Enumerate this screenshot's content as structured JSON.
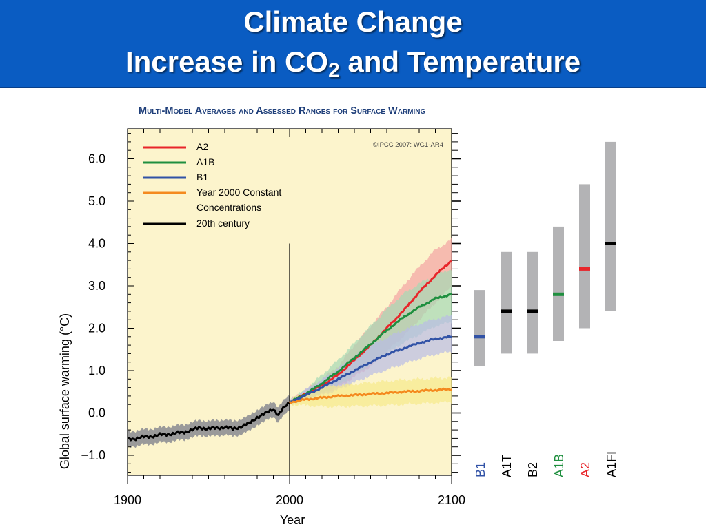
{
  "slide": {
    "title_line1": "Climate Change",
    "title_line2_pre": "Increase in CO",
    "title_line2_sub": "2",
    "title_line2_post": " and Temperature"
  },
  "chart_data": {
    "type": "line",
    "title": "Multi-Model Averages and Assessed Ranges for Surface Warming",
    "copyright": "©IPCC  2007: WG1-AR4",
    "xlabel": "Year",
    "ylabel": "Global surface warming (°C)",
    "xlim": [
      1900,
      2100
    ],
    "ylim": [
      -1.5,
      6.8
    ],
    "xticks": [
      "1900",
      "2000",
      "2100"
    ],
    "yticks": [
      "6.0",
      "5.0",
      "4.0",
      "3.0",
      "2.0",
      "1.0",
      "0.0",
      "−1.0"
    ],
    "ytick_values": [
      6,
      5,
      4,
      3,
      2,
      1,
      0,
      -1
    ],
    "xtick_values": [
      1900,
      2000,
      2100
    ],
    "vline_year": 2000,
    "legend_position": "top-left",
    "legend": [
      {
        "label": "A2",
        "color": "#e8252a"
      },
      {
        "label": "A1B",
        "color": "#1f8f3f"
      },
      {
        "label": "B1",
        "color": "#3152a6"
      },
      {
        "label": "Year 2000 Constant",
        "label2": "Concentrations",
        "color": "#f48a1f"
      },
      {
        "label": "20th century",
        "color": "#000000"
      }
    ],
    "series": [
      {
        "name": "20th century",
        "color": "#000000",
        "band_color": "#9a9a9a",
        "x": [
          1900,
          1905,
          1910,
          1915,
          1920,
          1925,
          1930,
          1935,
          1940,
          1945,
          1950,
          1955,
          1960,
          1965,
          1970,
          1975,
          1980,
          1985,
          1990,
          1993,
          1995,
          1998,
          2000
        ],
        "y": [
          -0.62,
          -0.6,
          -0.57,
          -0.55,
          -0.52,
          -0.5,
          -0.48,
          -0.45,
          -0.4,
          -0.35,
          -0.37,
          -0.36,
          -0.33,
          -0.38,
          -0.32,
          -0.25,
          -0.1,
          -0.02,
          0.1,
          -0.05,
          0.05,
          0.18,
          0.25
        ],
        "band": 0.18
      },
      {
        "name": "A2",
        "color": "#e8252a",
        "band_color": "#f4a3a3",
        "x": [
          2000,
          2010,
          2020,
          2030,
          2040,
          2050,
          2060,
          2070,
          2080,
          2090,
          2100
        ],
        "y": [
          0.25,
          0.45,
          0.65,
          0.9,
          1.25,
          1.6,
          2.0,
          2.4,
          2.85,
          3.25,
          3.6
        ],
        "lo": [
          0.2,
          0.35,
          0.45,
          0.6,
          0.85,
          1.1,
          1.45,
          1.8,
          2.2,
          2.6,
          3.0
        ],
        "hi": [
          0.3,
          0.55,
          0.8,
          1.1,
          1.6,
          2.05,
          2.5,
          3.0,
          3.45,
          3.85,
          4.1
        ]
      },
      {
        "name": "A1B",
        "color": "#1f8f3f",
        "band_color": "#a5d9b5",
        "x": [
          2000,
          2010,
          2020,
          2030,
          2040,
          2050,
          2060,
          2070,
          2080,
          2090,
          2100
        ],
        "y": [
          0.25,
          0.45,
          0.7,
          0.98,
          1.3,
          1.62,
          1.95,
          2.25,
          2.5,
          2.7,
          2.8
        ],
        "lo": [
          0.2,
          0.35,
          0.45,
          0.65,
          0.9,
          1.15,
          1.4,
          1.65,
          1.85,
          2.05,
          2.15
        ],
        "hi": [
          0.3,
          0.55,
          0.9,
          1.25,
          1.65,
          2.05,
          2.45,
          2.8,
          3.05,
          3.25,
          3.4
        ]
      },
      {
        "name": "B1",
        "color": "#3152a6",
        "band_color": "#b9bce6",
        "x": [
          2000,
          2010,
          2020,
          2030,
          2040,
          2050,
          2060,
          2070,
          2080,
          2090,
          2100
        ],
        "y": [
          0.25,
          0.42,
          0.6,
          0.8,
          1.0,
          1.2,
          1.38,
          1.52,
          1.65,
          1.75,
          1.8
        ],
        "lo": [
          0.2,
          0.32,
          0.42,
          0.55,
          0.72,
          0.88,
          1.02,
          1.15,
          1.28,
          1.38,
          1.45
        ],
        "hi": [
          0.3,
          0.55,
          0.78,
          1.05,
          1.32,
          1.58,
          1.78,
          1.95,
          2.1,
          2.22,
          2.3
        ]
      },
      {
        "name": "Year 2000 Constant Concentrations",
        "color": "#f48a1f",
        "band_color": "#f7e98a",
        "x": [
          2000,
          2010,
          2020,
          2030,
          2040,
          2050,
          2060,
          2070,
          2080,
          2090,
          2100
        ],
        "y": [
          0.25,
          0.32,
          0.36,
          0.4,
          0.42,
          0.45,
          0.47,
          0.5,
          0.52,
          0.54,
          0.56
        ],
        "lo": [
          0.2,
          0.18,
          0.15,
          0.15,
          0.16,
          0.17,
          0.18,
          0.2,
          0.22,
          0.24,
          0.26
        ],
        "hi": [
          0.3,
          0.5,
          0.6,
          0.65,
          0.68,
          0.72,
          0.75,
          0.78,
          0.8,
          0.82,
          0.84
        ]
      }
    ],
    "ranges": [
      {
        "label": "B1",
        "low": 1.1,
        "high": 2.9,
        "best": 1.8,
        "color": "#3152a6"
      },
      {
        "label": "A1T",
        "low": 1.4,
        "high": 3.8,
        "best": 2.4,
        "color": "#000000"
      },
      {
        "label": "B2",
        "low": 1.4,
        "high": 3.8,
        "best": 2.4,
        "color": "#000000"
      },
      {
        "label": "A1B",
        "low": 1.7,
        "high": 4.4,
        "best": 2.8,
        "color": "#1f8f3f"
      },
      {
        "label": "A2",
        "low": 2.0,
        "high": 5.4,
        "best": 3.4,
        "color": "#e8252a"
      },
      {
        "label": "A1FI",
        "low": 2.4,
        "high": 6.4,
        "best": 4.0,
        "color": "#000000"
      }
    ],
    "colors": {
      "plot_bg": "#fcf4cc",
      "range_bar": "#b3b3b5",
      "title": "#1f3f7a"
    }
  }
}
